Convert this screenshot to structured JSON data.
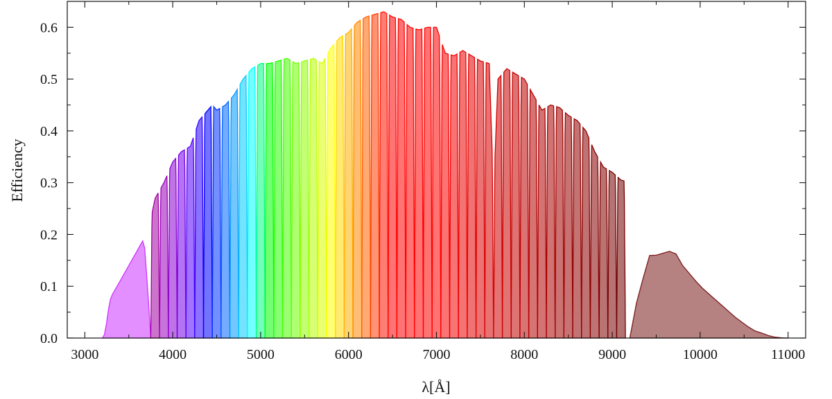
{
  "chart_data": {
    "type": "area",
    "title": "",
    "xlabel": "λ[Å]",
    "ylabel": "Efficiency",
    "xlim": [
      2800,
      11200
    ],
    "ylim": [
      0.0,
      0.65
    ],
    "x_ticks": [
      3000,
      4000,
      5000,
      6000,
      7000,
      8000,
      9000,
      10000,
      11000
    ],
    "y_ticks": [
      0.0,
      0.1,
      0.2,
      0.3,
      0.4,
      0.5,
      0.6
    ],
    "x_tick_labels": [
      "3000",
      "4000",
      "5000",
      "6000",
      "7000",
      "8000",
      "9000",
      "10000",
      "11000"
    ],
    "y_tick_labels": [
      "0.0",
      "0.1",
      "0.2",
      "0.3",
      "0.4",
      "0.5",
      "0.6"
    ],
    "grid": false,
    "legend": "none",
    "filters": {
      "description": "Narrow-band filter transmission curves filled under the efficiency envelope",
      "first_filter": [
        3200,
        3750
      ],
      "last_filter": [
        9200,
        11000
      ],
      "band_start": 3750,
      "band_width": 100,
      "band_count": 54
    },
    "envelope": {
      "x": [
        3200,
        3250,
        3300,
        3400,
        3500,
        3600,
        3700,
        3750,
        3800,
        3900,
        4000,
        4100,
        4200,
        4300,
        4400,
        4450,
        4500,
        4600,
        4700,
        4800,
        4900,
        5000,
        5100,
        5200,
        5300,
        5400,
        5500,
        5600,
        5700,
        5800,
        5900,
        6000,
        6100,
        6200,
        6300,
        6400,
        6500,
        6600,
        6700,
        6800,
        6900,
        7000,
        7100,
        7200,
        7300,
        7400,
        7500,
        7600,
        7650,
        7700,
        7800,
        7900,
        8000,
        8100,
        8200,
        8300,
        8400,
        8500,
        8600,
        8700,
        8800,
        8900,
        9000,
        9100,
        9200,
        9300,
        9400,
        9500,
        9600,
        9700,
        9800,
        9900,
        10000,
        10200,
        10400,
        10600,
        10800,
        11000
      ],
      "y": [
        0.0,
        0.05,
        0.08,
        0.11,
        0.14,
        0.17,
        0.2,
        0.23,
        0.27,
        0.3,
        0.34,
        0.36,
        0.37,
        0.42,
        0.44,
        0.45,
        0.44,
        0.45,
        0.47,
        0.5,
        0.52,
        0.53,
        0.53,
        0.535,
        0.54,
        0.53,
        0.535,
        0.54,
        0.53,
        0.56,
        0.58,
        0.59,
        0.61,
        0.62,
        0.625,
        0.63,
        0.62,
        0.615,
        0.6,
        0.595,
        0.6,
        0.6,
        0.55,
        0.545,
        0.555,
        0.545,
        0.535,
        0.53,
        0.28,
        0.5,
        0.52,
        0.51,
        0.5,
        0.47,
        0.44,
        0.45,
        0.445,
        0.43,
        0.42,
        0.4,
        0.36,
        0.33,
        0.32,
        0.305,
        0.3,
        0.2,
        0.185,
        0.16,
        0.165,
        0.17,
        0.14,
        0.12,
        0.1,
        0.07,
        0.04,
        0.015,
        0.004,
        0.0
      ]
    },
    "colors": {
      "axis": "#111111",
      "first_filter": "#cc33ff",
      "last_filter": "#7a1a1a"
    }
  }
}
